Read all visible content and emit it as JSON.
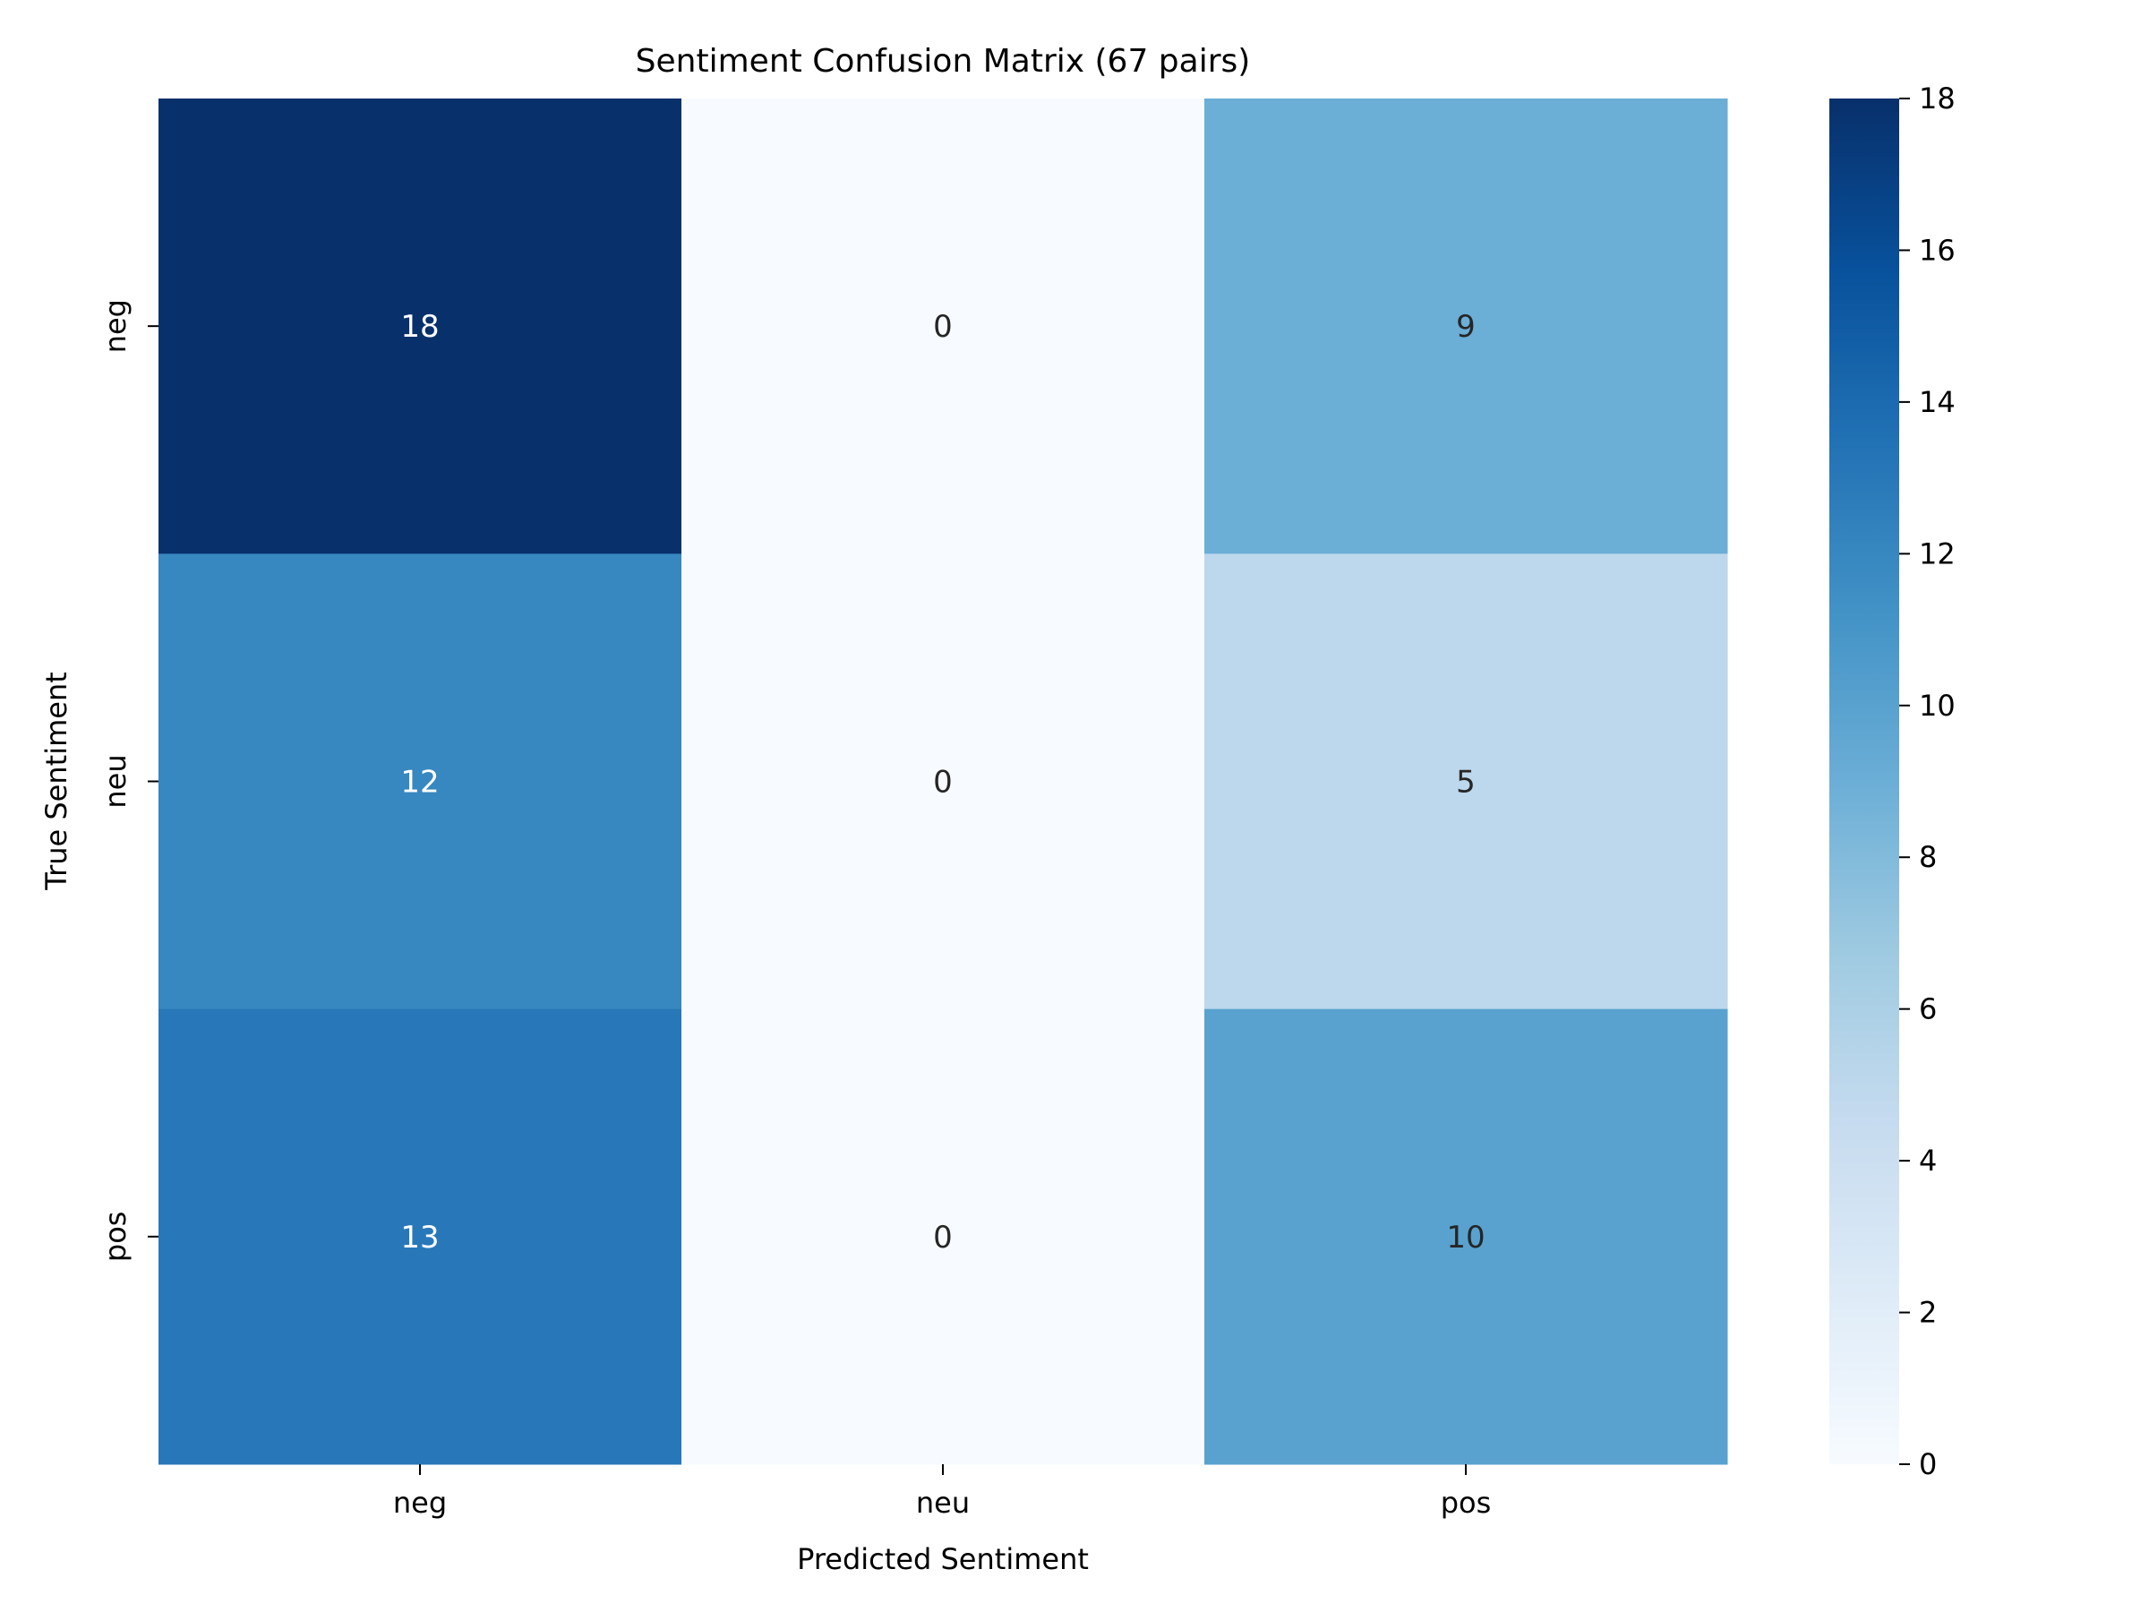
{
  "chart_data": {
    "type": "heatmap",
    "title": "Sentiment Confusion Matrix (67 pairs)",
    "xlabel": "Predicted Sentiment",
    "ylabel": "True Sentiment",
    "x_categories": [
      "neg",
      "neu",
      "pos"
    ],
    "y_categories": [
      "neg",
      "neu",
      "pos"
    ],
    "values": [
      [
        18,
        0,
        9
      ],
      [
        12,
        0,
        5
      ],
      [
        13,
        0,
        10
      ]
    ],
    "colorbar": {
      "range": [
        0,
        18
      ],
      "ticks": [
        0,
        2,
        4,
        6,
        8,
        10,
        12,
        14,
        16,
        18
      ],
      "colormap": "Blues",
      "colors": [
        "#f7fbff",
        "#deebf7",
        "#c6dbef",
        "#9ecae1",
        "#6baed6",
        "#4292c6",
        "#2171b5",
        "#08519c",
        "#08306b"
      ]
    },
    "grid": false,
    "annotations": true
  }
}
